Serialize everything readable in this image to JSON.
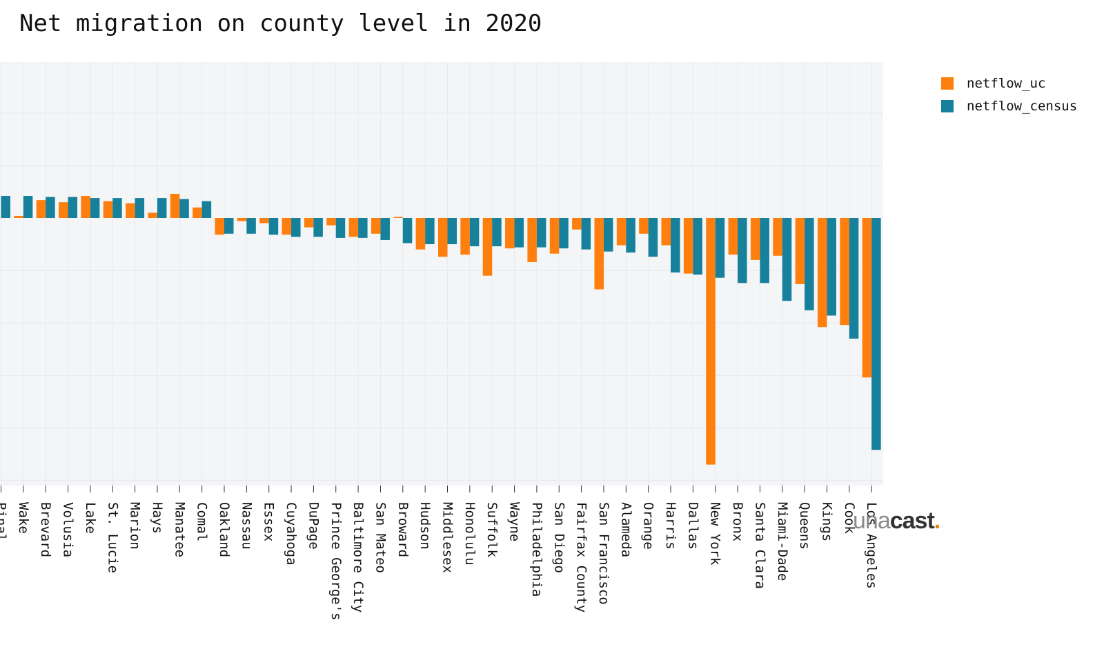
{
  "chart_data": {
    "type": "bar",
    "title": "Net migration on county level in 2020",
    "xlabel": "",
    "ylabel": "",
    "ylim": [
      -25500,
      14500
    ],
    "grid": true,
    "legend_position": "top-right",
    "categories": [
      "Pinal",
      "Wake",
      "Brevard",
      "Volusia",
      "Lake",
      "St. Lucie",
      "Marion",
      "Hays",
      "Manatee",
      "Comal",
      "Oakland",
      "Nassau",
      "Essex",
      "Cuyahoga",
      "DuPage",
      "Prince George's",
      "Baltimore City",
      "San Mateo",
      "Broward",
      "Hudson",
      "Middlesex",
      "Honolulu",
      "Suffolk",
      "Wayne",
      "Philadelphia",
      "San Diego",
      "Fairfax County",
      "San Francisco",
      "Alameda",
      "Orange",
      "Harris",
      "Dallas",
      "New York",
      "Bronx",
      "Santa Clara",
      "Miami-Dade",
      "Queens",
      "Kings",
      "Cook",
      "Los Angeles"
    ],
    "series": [
      {
        "name": "netflow_uc",
        "color": "#ff7f0e",
        "values": [
          0,
          200,
          1700,
          1500,
          2100,
          1600,
          1400,
          500,
          2300,
          1000,
          -1600,
          -300,
          -500,
          -1600,
          -900,
          -700,
          -1800,
          -1500,
          100,
          -3000,
          -3700,
          -3500,
          -5500,
          -2900,
          -4200,
          -3400,
          -1100,
          -6800,
          -2600,
          -1500,
          -2600,
          -5300,
          -23500,
          -3500,
          -4000,
          -3600,
          -6300,
          -10400,
          -10200,
          -15200
        ]
      },
      {
        "name": "netflow_census",
        "color": "#17809b",
        "values": [
          2100,
          2100,
          2000,
          2000,
          1900,
          1900,
          1900,
          1900,
          1800,
          1600,
          -1500,
          -1500,
          -1600,
          -1800,
          -1800,
          -1900,
          -1900,
          -2100,
          -2400,
          -2500,
          -2500,
          -2700,
          -2700,
          -2800,
          -2800,
          -2900,
          -3000,
          -3200,
          -3300,
          -3700,
          -5200,
          -5400,
          -5700,
          -6200,
          -6200,
          -7900,
          -8800,
          -9300,
          -11500,
          -22100
        ]
      }
    ]
  },
  "legend": {
    "items": [
      "netflow_uc",
      "netflow_census"
    ]
  },
  "brand": {
    "light": "una",
    "bold": "cast",
    "dot": "."
  }
}
